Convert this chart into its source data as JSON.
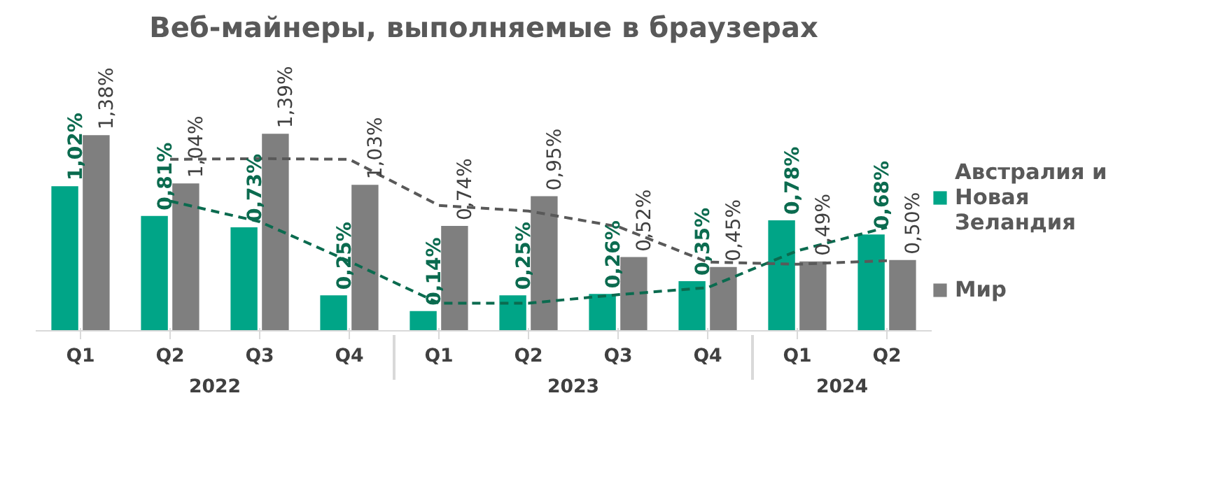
{
  "chart_data": {
    "type": "bar",
    "title": "Веб-майнеры, выполняемые в браузерах",
    "categories": [
      "Q1",
      "Q2",
      "Q3",
      "Q4",
      "Q1",
      "Q2",
      "Q3",
      "Q4",
      "Q1",
      "Q2"
    ],
    "annotations": [
      "2022",
      "2023",
      "2024"
    ],
    "series": [
      {
        "name": "Австралия и Новая Зеландия",
        "color": "#00a587",
        "values": [
          1.02,
          0.81,
          0.73,
          0.25,
          0.14,
          0.25,
          0.26,
          0.35,
          0.78,
          0.68
        ],
        "value_labels": [
          "1,02%",
          "0,81%",
          "0,73%",
          "0,25%",
          "0,14%",
          "0,25%",
          "0,26%",
          "0,35%",
          "0,78%",
          "0,68%"
        ]
      },
      {
        "name": "Мир",
        "color": "#7f7f7f",
        "values": [
          1.38,
          1.04,
          1.39,
          1.03,
          0.74,
          0.95,
          0.52,
          0.45,
          0.49,
          0.5
        ],
        "value_labels": [
          "1,38%",
          "1,04%",
          "1,39%",
          "1,03%",
          "0,74%",
          "0,95%",
          "0,52%",
          "0,45%",
          "0,49%",
          "0,50%"
        ]
      },
      {
        "type": "line",
        "color": "#0b6b4f",
        "line_style": "dashed",
        "values": [
          null,
          0.915,
          0.77,
          0.49,
          0.195,
          0.195,
          0.255,
          0.305,
          0.565,
          0.73
        ]
      },
      {
        "type": "line",
        "color": "#595959",
        "line_style": "dashed",
        "values": [
          null,
          1.21,
          1.215,
          1.21,
          0.885,
          0.845,
          0.735,
          0.485,
          0.47,
          0.495
        ]
      }
    ],
    "legend": "right",
    "grid": false
  }
}
